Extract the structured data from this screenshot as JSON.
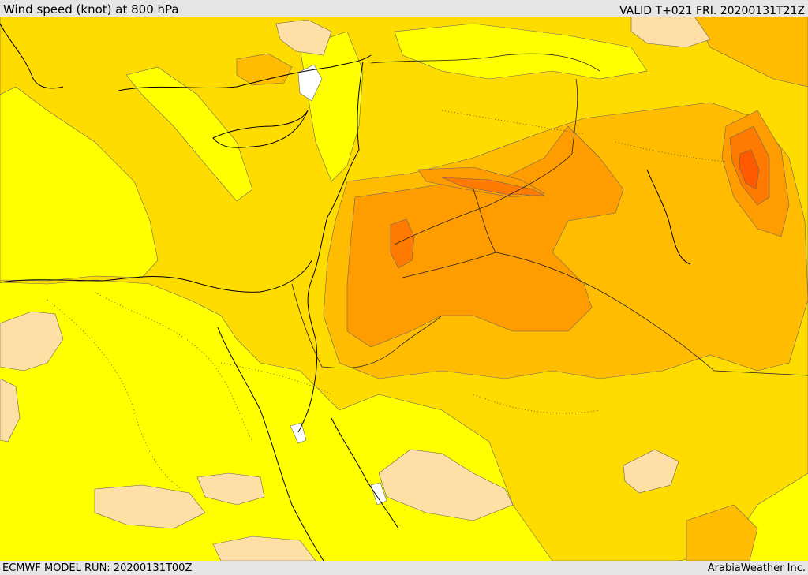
{
  "header": {
    "title": "Wind speed (knot) at 800 hPa",
    "valid": "VALID T+021 FRI. 20200131T21Z"
  },
  "footer": {
    "model_run": "ECMWF MODEL RUN: 20200131T00Z",
    "credit": "ArabiaWeather Inc."
  },
  "map": {
    "field": "wind speed",
    "level": "800 hPa",
    "colors": {
      "calm": "#ffffff",
      "light": "#fedfa5",
      "low": "#ffff00",
      "moderate": "#ffdc00",
      "fresh": "#ffbc00",
      "strong": "#ff9d00",
      "stronger": "#ff7a00",
      "strongest": "#ff5a00",
      "coastline": "#000000",
      "contour": "#555555"
    }
  }
}
